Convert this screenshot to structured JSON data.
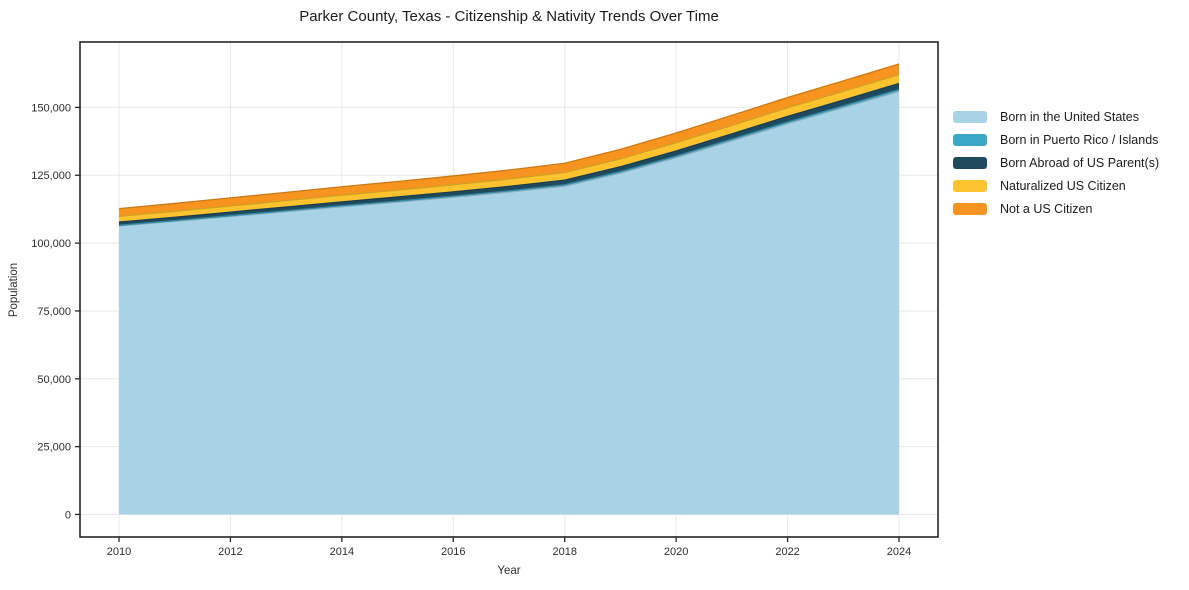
{
  "title": "Parker County, Texas - Citizenship & Nativity Trends Over Time",
  "chart_data": {
    "type": "area",
    "stacked": true,
    "title": "Parker County, Texas - Citizenship & Nativity Trends Over Time",
    "xlabel": "Year",
    "ylabel": "Population",
    "x": [
      2010,
      2011,
      2012,
      2013,
      2014,
      2015,
      2016,
      2017,
      2018,
      2019,
      2020,
      2021,
      2022,
      2023,
      2024
    ],
    "series": [
      {
        "name": "Born in the United States",
        "color": "#a8d3e7",
        "values": [
          106300,
          108000,
          109800,
          111600,
          113400,
          115100,
          116900,
          118800,
          121000,
          125800,
          131500,
          137700,
          144000,
          149900,
          155900
        ]
      },
      {
        "name": "Born in Puerto Rico / Islands",
        "color": "#3ba7c7",
        "values": [
          250,
          270,
          300,
          320,
          350,
          380,
          400,
          440,
          480,
          520,
          560,
          600,
          640,
          670,
          700
        ]
      },
      {
        "name": "Born Abroad of US Parent(s)",
        "color": "#1f4a5e",
        "values": [
          1200,
          1260,
          1320,
          1390,
          1450,
          1520,
          1580,
          1650,
          1720,
          1800,
          1880,
          1960,
          2040,
          2120,
          2200
        ]
      },
      {
        "name": "Naturalized US Citizen",
        "color": "#fcc32e",
        "values": [
          2100,
          2180,
          2260,
          2350,
          2440,
          2530,
          2620,
          2720,
          2820,
          2930,
          3040,
          3110,
          3180,
          3240,
          3300
        ]
      },
      {
        "name": "Not a US Citizen",
        "color": "#f7941f",
        "values": [
          2850,
          2910,
          2970,
          3040,
          3110,
          3180,
          3250,
          3330,
          3410,
          3500,
          3590,
          3690,
          3790,
          3850,
          3900
        ]
      }
    ],
    "x_ticks": [
      2010,
      2012,
      2014,
      2016,
      2018,
      2020,
      2022,
      2024
    ],
    "y_ticks": [
      0,
      25000,
      50000,
      75000,
      100000,
      125000,
      150000
    ],
    "y_tick_labels": [
      "0",
      "25,000",
      "50,000",
      "75,000",
      "100,000",
      "125,000",
      "150,000"
    ],
    "xlim": [
      2009.3,
      2024.7
    ],
    "ylim": [
      -8300,
      174100
    ],
    "grid": true,
    "legend_position": "right-outside"
  },
  "styles": {
    "background": "#ffffff",
    "grid_color": "#e8e8e8",
    "spine_color": "#262626",
    "tick_color": "#262626",
    "tick_label_color": "#2e2e2e",
    "edge_darken": 0.82
  }
}
